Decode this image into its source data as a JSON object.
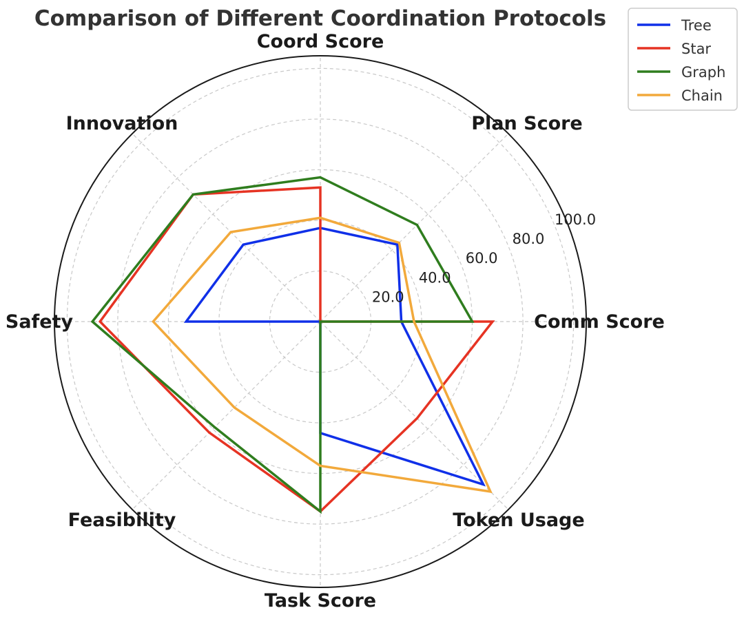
{
  "chart_data": {
    "type": "radar",
    "title": "Comparison of Different Coordination Protocols",
    "categories": [
      "Comm Score",
      "Plan Score",
      "Coord Score",
      "Innovation",
      "Safety",
      "Feasibility",
      "Task Score",
      "Token Usage"
    ],
    "radial_ticks": [
      "20.0",
      "40.0",
      "60.0",
      "80.0",
      "100.0"
    ],
    "radial_tick_values": [
      20,
      40,
      60,
      80,
      100
    ],
    "rlim": [
      0,
      105
    ],
    "grid": true,
    "legend_position": "top-right",
    "series": [
      {
        "name": "Tree",
        "color": "#1030e8",
        "values": [
          32,
          43,
          37,
          43,
          53,
          0,
          44,
          91
        ]
      },
      {
        "name": "Star",
        "color": "#e63323",
        "values": [
          68,
          0,
          53,
          71,
          87,
          62,
          75,
          54
        ]
      },
      {
        "name": "Graph",
        "color": "#2f7d1e",
        "values": [
          60,
          54,
          57,
          71,
          90,
          59,
          75,
          0
        ]
      },
      {
        "name": "Chain",
        "color": "#f2a93b",
        "values": [
          37,
          44,
          41,
          50,
          66,
          48,
          57,
          95
        ]
      }
    ]
  }
}
